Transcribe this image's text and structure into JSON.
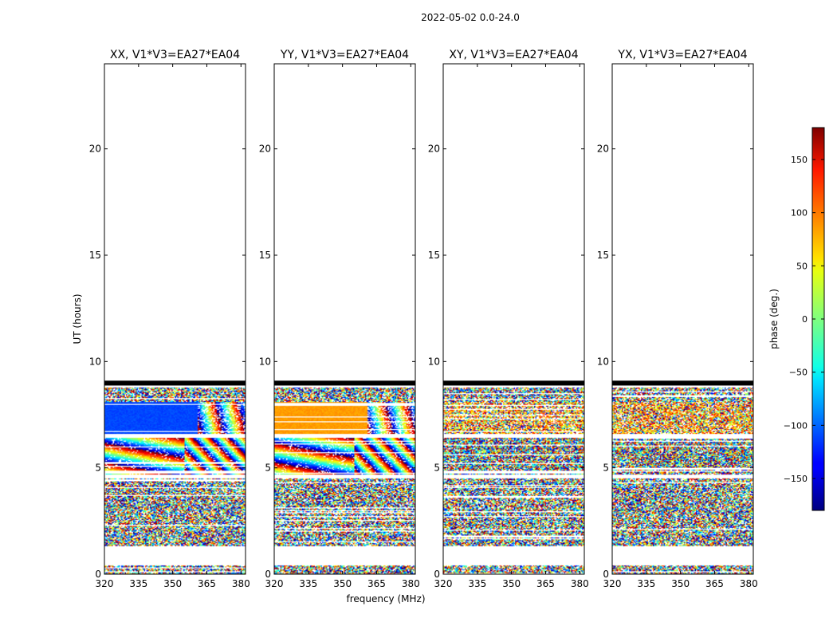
{
  "chart_data": {
    "type": "heatmap",
    "title": "2022-05-02 0.0-24.0",
    "xlabel": "frequency (MHz)",
    "ylabel": "UT (hours)",
    "xlim": [
      320,
      382
    ],
    "ylim": [
      0,
      24
    ],
    "xticks": [
      "320",
      "335",
      "350",
      "365",
      "380"
    ],
    "xtick_values": [
      320,
      335,
      350,
      365,
      380
    ],
    "yticks": [
      "0",
      "5",
      "10",
      "15",
      "20"
    ],
    "ytick_values": [
      0,
      5,
      10,
      15,
      20
    ],
    "panels": [
      {
        "title": "XX, V1*V3=EA27*EA04",
        "pol": "XX",
        "smooth_phase": -110,
        "coherent_until_freq": 361
      },
      {
        "title": "YY, V1*V3=EA27*EA04",
        "pol": "YY",
        "smooth_phase": 80,
        "coherent_until_freq": 361
      },
      {
        "title": "XY, V1*V3=EA27*EA04",
        "pol": "XY",
        "smooth_phase": null,
        "coherent_until_freq": null
      },
      {
        "title": "YX, V1*V3=EA27*EA04",
        "pol": "YX",
        "smooth_phase": null,
        "coherent_until_freq": null
      }
    ],
    "data_segments_hours": [
      {
        "from": 0.0,
        "to": 0.4,
        "kind": "noise"
      },
      {
        "from": 1.3,
        "to": 4.5,
        "kind": "noise"
      },
      {
        "from": 4.7,
        "to": 6.4,
        "kind": "fringe"
      },
      {
        "from": 6.6,
        "to": 8.1,
        "kind": "smooth"
      },
      {
        "from": 8.1,
        "to": 8.8,
        "kind": "noise"
      },
      {
        "from": 8.85,
        "to": 9.1,
        "kind": "flagged"
      }
    ],
    "colorbar": {
      "label": "phase (deg.)",
      "range": [
        -180,
        180
      ],
      "ticks": [
        "−150",
        "−100",
        "−50",
        "0",
        "50",
        "100",
        "150"
      ],
      "tick_values": [
        -150,
        -100,
        -50,
        0,
        50,
        100,
        150
      ],
      "colormap": "jet"
    }
  }
}
